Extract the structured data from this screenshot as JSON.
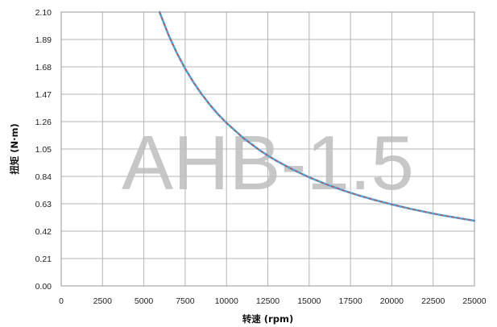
{
  "chart_data": {
    "type": "line",
    "title": "",
    "xlabel": "转速 (rpm)",
    "ylabel": "扭矩 (N·m)",
    "xlim": [
      0,
      25000
    ],
    "ylim": [
      0,
      2.1
    ],
    "xticks": [
      "0",
      "2500",
      "5000",
      "7500",
      "10000",
      "12500",
      "15000",
      "17500",
      "20000",
      "22500",
      "25000"
    ],
    "yticks": [
      "0.00",
      "0.21",
      "0.42",
      "0.63",
      "0.84",
      "1.05",
      "1.26",
      "1.47",
      "1.68",
      "1.89",
      "2.10"
    ],
    "grid": true,
    "watermark": "AHB-1.5",
    "series": [
      {
        "color": "#4aa8e0",
        "dash_color": "#d04a4a",
        "x": [
          5950,
          6500,
          7000,
          7500,
          8000,
          8500,
          9000,
          9500,
          10000,
          11000,
          12000,
          12500,
          13000,
          14000,
          15000,
          16000,
          17000,
          17500,
          18000,
          19000,
          20000,
          21000,
          22000,
          22500,
          23000,
          24000,
          25000
        ],
        "y": [
          2.1,
          1.922,
          1.785,
          1.666,
          1.562,
          1.47,
          1.388,
          1.315,
          1.25,
          1.136,
          1.041,
          1.0,
          0.961,
          0.893,
          0.833,
          0.781,
          0.735,
          0.714,
          0.694,
          0.658,
          0.625,
          0.595,
          0.568,
          0.555,
          0.543,
          0.521,
          0.5
        ]
      }
    ]
  }
}
